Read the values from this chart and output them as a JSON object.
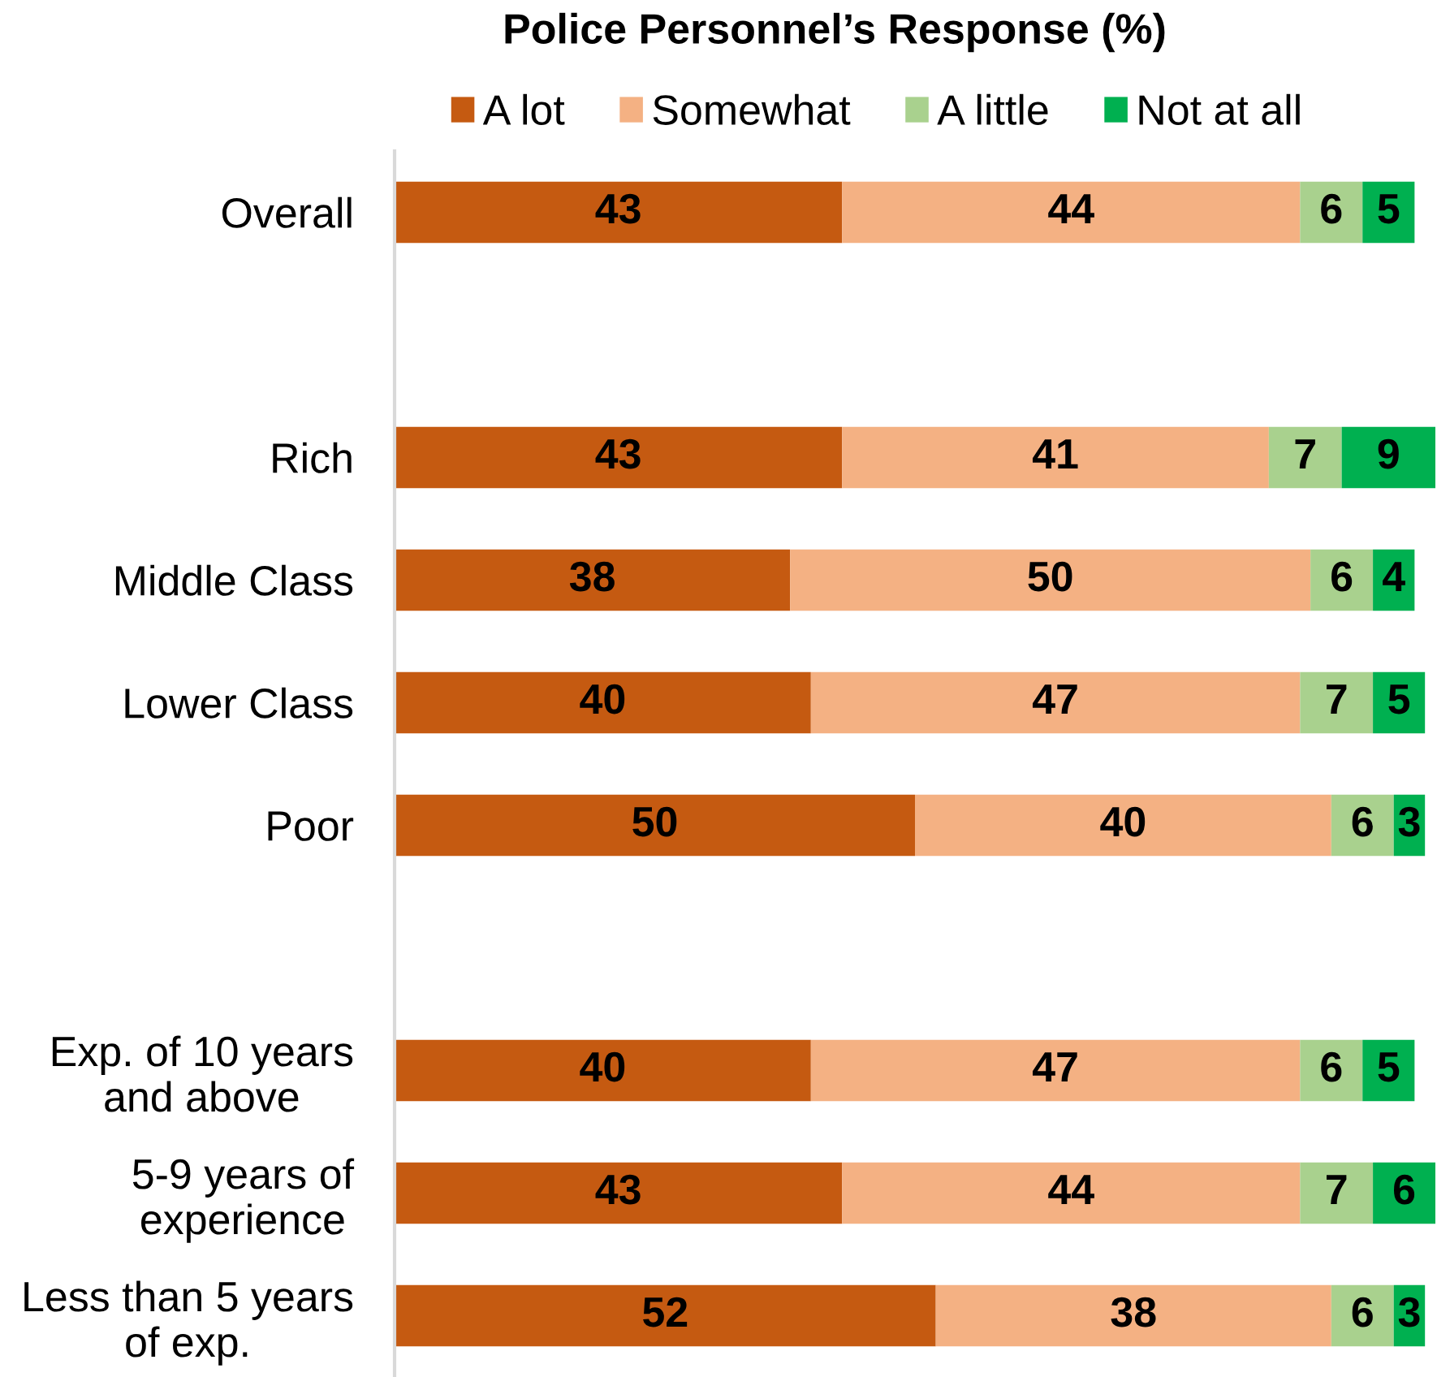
{
  "chart_data": {
    "type": "bar",
    "orientation": "horizontal",
    "stacked": true,
    "title": "Police Personnel’s Response (%)",
    "categories": [
      "Overall",
      null,
      "Rich",
      "Middle Class",
      "Lower Class",
      "Poor",
      null,
      "Exp. of 10 years\nand above",
      "5-9 years of\nexperience",
      "Less than 5 years\nof exp."
    ],
    "series": [
      {
        "name": "A lot",
        "color": "#c55a11",
        "values": [
          43,
          null,
          43,
          38,
          40,
          50,
          null,
          40,
          43,
          52
        ]
      },
      {
        "name": "Somewhat",
        "color": "#f4b183",
        "values": [
          44,
          null,
          41,
          50,
          47,
          40,
          null,
          47,
          44,
          38
        ]
      },
      {
        "name": "A little",
        "color": "#a9d18e",
        "values": [
          6,
          null,
          7,
          6,
          7,
          6,
          null,
          6,
          7,
          6
        ]
      },
      {
        "name": "Not at all",
        "color": "#00b050",
        "values": [
          5,
          null,
          9,
          4,
          5,
          3,
          null,
          5,
          6,
          3
        ]
      }
    ],
    "xlim": [
      0,
      100
    ],
    "data_labels": true,
    "legend": "top",
    "tick_labels": "y"
  }
}
